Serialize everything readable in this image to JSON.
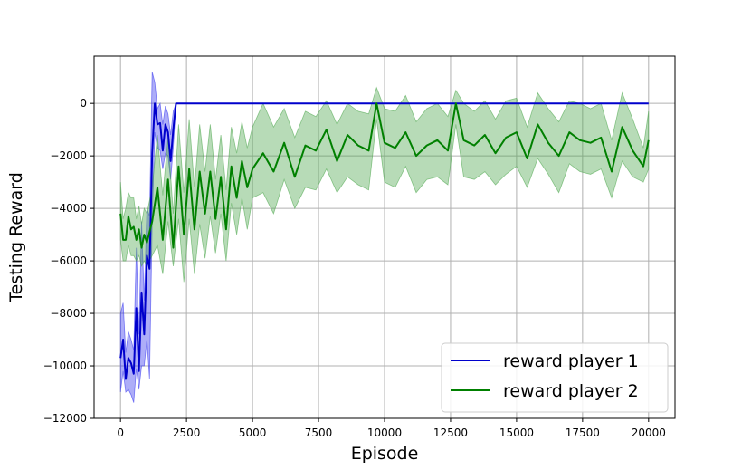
{
  "chart_data": {
    "type": "line",
    "title": "",
    "xlabel": "Episode",
    "ylabel": "Testing Reward",
    "xlim": [
      -1000,
      21000
    ],
    "ylim": [
      -12000,
      1800
    ],
    "xticks": [
      0,
      2500,
      5000,
      7500,
      10000,
      12500,
      15000,
      17500,
      20000
    ],
    "yticks": [
      -12000,
      -10000,
      -8000,
      -6000,
      -4000,
      -2000,
      0
    ],
    "grid": true,
    "legend_position": "lower-right",
    "series": [
      {
        "name": "reward player 1",
        "color": "#0000cc",
        "band_color": "#3333ee",
        "x": [
          0,
          100,
          200,
          300,
          400,
          500,
          600,
          700,
          800,
          900,
          1000,
          1100,
          1200,
          1300,
          1400,
          1500,
          1600,
          1700,
          1800,
          1900,
          2000,
          2100,
          2200,
          20000
        ],
        "y": [
          -9700,
          -9000,
          -10500,
          -9700,
          -9900,
          -10300,
          -7800,
          -10200,
          -7200,
          -8800,
          -5800,
          -6300,
          -1900,
          0,
          -800,
          -750,
          -1800,
          -800,
          -1100,
          -2200,
          -1000,
          0,
          0,
          0
        ],
        "lower": [
          -11000,
          -10200,
          -11000,
          -10900,
          -11100,
          -11400,
          -10100,
          -10900,
          -10000,
          -10000,
          -9000,
          -10500,
          -4500,
          -1100,
          -1700,
          -1800,
          -2500,
          -1900,
          -2000,
          -2900,
          -1700,
          0,
          0,
          0
        ],
        "upper": [
          -8000,
          -7600,
          -9500,
          -8700,
          -9000,
          -9400,
          -5500,
          -8800,
          -4500,
          -7500,
          -4000,
          -4300,
          1200,
          800,
          -200,
          0,
          -800,
          -100,
          -400,
          -1200,
          -300,
          0,
          0,
          0
        ]
      },
      {
        "name": "reward player 2",
        "color": "#008000",
        "band_color": "#4ca64c",
        "x": [
          0,
          100,
          200,
          300,
          400,
          500,
          600,
          700,
          800,
          900,
          1000,
          1200,
          1400,
          1600,
          1800,
          2000,
          2200,
          2400,
          2600,
          2800,
          3000,
          3200,
          3400,
          3600,
          3800,
          4000,
          4200,
          4400,
          4600,
          4800,
          5000,
          5400,
          5800,
          6200,
          6600,
          7000,
          7400,
          7800,
          8200,
          8600,
          9000,
          9400,
          9700,
          10000,
          10400,
          10800,
          11200,
          11600,
          12000,
          12400,
          12700,
          13000,
          13400,
          13800,
          14200,
          14600,
          15000,
          15400,
          15800,
          16200,
          16600,
          17000,
          17400,
          17800,
          18200,
          18600,
          19000,
          19400,
          19800,
          20000
        ],
        "y": [
          -4200,
          -5200,
          -5200,
          -4300,
          -4800,
          -4700,
          -5200,
          -4800,
          -5500,
          -5000,
          -5300,
          -4500,
          -3200,
          -5200,
          -2900,
          -5500,
          -2400,
          -5000,
          -2500,
          -4800,
          -2600,
          -4200,
          -2600,
          -4400,
          -2800,
          -4800,
          -2400,
          -3600,
          -2200,
          -3200,
          -2500,
          -1900,
          -2600,
          -1500,
          -2800,
          -1600,
          -1800,
          -1000,
          -2200,
          -1200,
          -1600,
          -1800,
          0,
          -1500,
          -1700,
          -1100,
          -2000,
          -1600,
          -1400,
          -1800,
          0,
          -1400,
          -1600,
          -1200,
          -1900,
          -1300,
          -1100,
          -2100,
          -800,
          -1500,
          -2000,
          -1100,
          -1400,
          -1500,
          -1300,
          -2600,
          -900,
          -1800,
          -2400,
          -1400
        ],
        "lower": [
          -5200,
          -6000,
          -6000,
          -5400,
          -5800,
          -5800,
          -6000,
          -5800,
          -6200,
          -6000,
          -6200,
          -5800,
          -5400,
          -6500,
          -4500,
          -6200,
          -4400,
          -6800,
          -4400,
          -6500,
          -4600,
          -5900,
          -4300,
          -5700,
          -4200,
          -6000,
          -3800,
          -5000,
          -3600,
          -4800,
          -3600,
          -3400,
          -4200,
          -2900,
          -4000,
          -3200,
          -3300,
          -2500,
          -3400,
          -2800,
          -3100,
          -3300,
          -600,
          -3000,
          -3200,
          -2400,
          -3400,
          -2900,
          -2800,
          -3100,
          -800,
          -2800,
          -2900,
          -2600,
          -3100,
          -2700,
          -2400,
          -3200,
          -2100,
          -2700,
          -3400,
          -2300,
          -2600,
          -2700,
          -2500,
          -3600,
          -2200,
          -2800,
          -3000,
          -2500
        ],
        "upper": [
          -3000,
          -4400,
          -4000,
          -3400,
          -3600,
          -3600,
          -4400,
          -3900,
          -4600,
          -4000,
          -4200,
          -3200,
          -1200,
          -3500,
          -1300,
          -4200,
          -800,
          -3400,
          -600,
          -3200,
          -800,
          -2600,
          -800,
          -2900,
          -1200,
          -3300,
          -900,
          -1900,
          -700,
          -1700,
          -900,
          0,
          -900,
          -200,
          -1300,
          -300,
          -500,
          100,
          -800,
          0,
          -300,
          -400,
          600,
          -200,
          -300,
          300,
          -700,
          -200,
          0,
          -500,
          500,
          0,
          -300,
          100,
          -600,
          100,
          200,
          -900,
          400,
          -200,
          -700,
          100,
          0,
          -200,
          0,
          -1400,
          400,
          -600,
          -1700,
          -300
        ]
      }
    ]
  }
}
